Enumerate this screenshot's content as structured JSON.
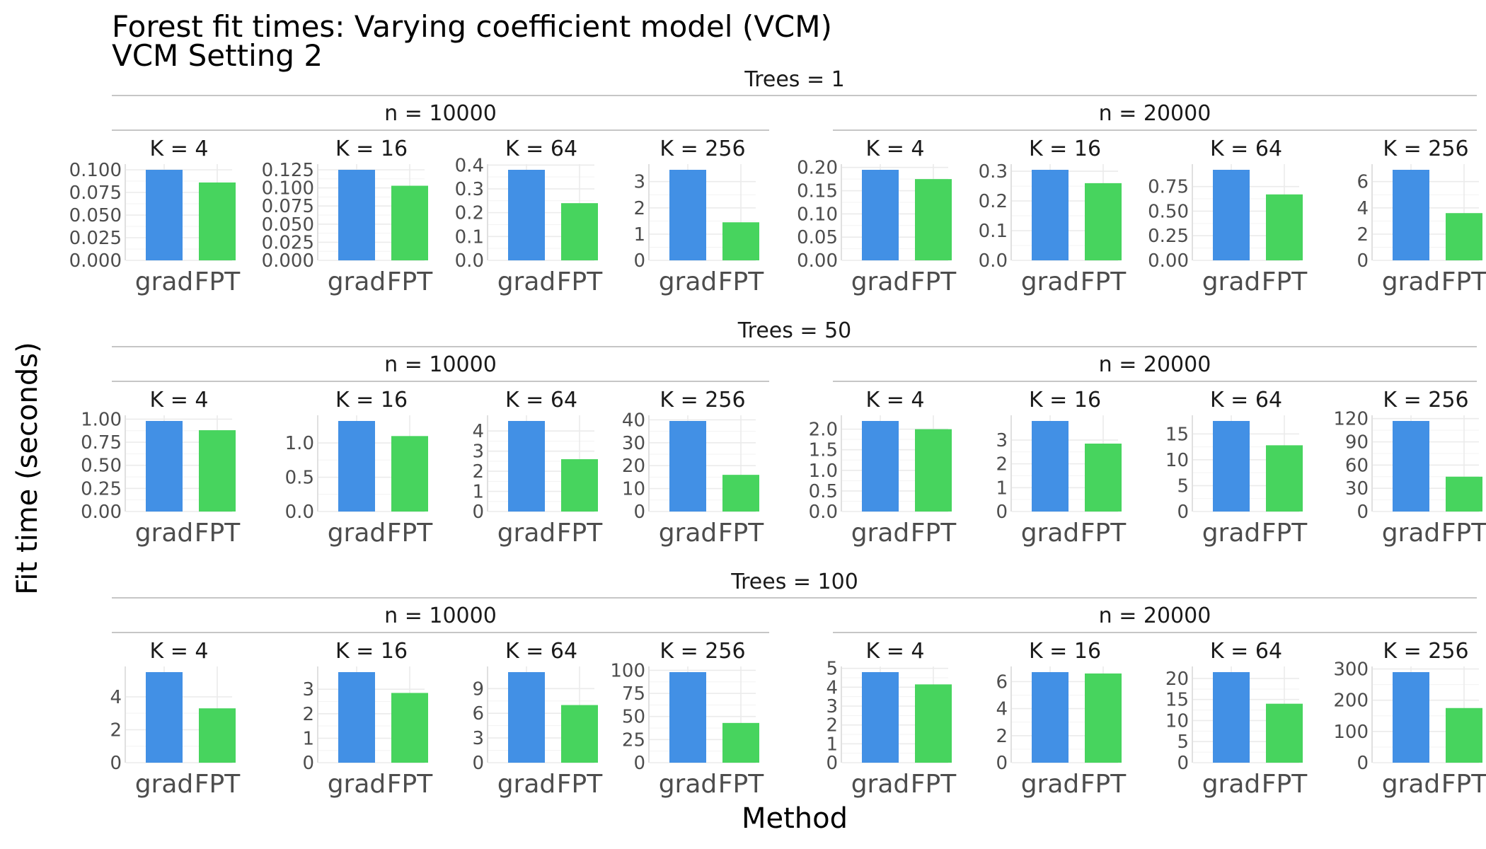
{
  "chart_data": {
    "type": "bar",
    "title": "Forest fit times: Varying coefficient model (VCM)",
    "subtitle": "VCM Setting 2",
    "xlabel": "Method",
    "ylabel": "Fit time (seconds)",
    "categories": [
      "grad",
      "FPT"
    ],
    "colors": {
      "grad": "#4290E5",
      "FPT": "#47D45E"
    },
    "rows": [
      {
        "label": "Trees = 1",
        "groups": [
          {
            "label": "n = 10000",
            "panels": [
              {
                "label": "K = 4",
                "values": [
                  0.1,
                  0.086
                ],
                "ylim": [
                  0,
                  0.1
                ],
                "ticks": [
                  "0.000",
                  "0.025",
                  "0.050",
                  "0.075",
                  "0.100"
                ],
                "tick_values": [
                  0,
                  0.025,
                  0.05,
                  0.075,
                  0.1
                ]
              },
              {
                "label": "K = 16",
                "values": [
                  0.125,
                  0.103
                ],
                "ylim": [
                  0,
                  0.125
                ],
                "ticks": [
                  "0.000",
                  "0.025",
                  "0.050",
                  "0.075",
                  "0.100",
                  "0.125"
                ],
                "tick_values": [
                  0,
                  0.025,
                  0.05,
                  0.075,
                  0.1,
                  0.125
                ]
              },
              {
                "label": "K = 64",
                "values": [
                  0.38,
                  0.24
                ],
                "ylim": [
                  0,
                  0.38
                ],
                "ticks": [
                  "0.0",
                  "0.1",
                  "0.2",
                  "0.3",
                  "0.4"
                ],
                "tick_values": [
                  0,
                  0.1,
                  0.2,
                  0.3,
                  0.4
                ]
              },
              {
                "label": "K = 256",
                "values": [
                  3.45,
                  1.45
                ],
                "ylim": [
                  0,
                  3.45
                ],
                "ticks": [
                  "0",
                  "1",
                  "2",
                  "3"
                ],
                "tick_values": [
                  0,
                  1,
                  2,
                  3
                ]
              }
            ]
          },
          {
            "label": "n = 20000",
            "panels": [
              {
                "label": "K = 4",
                "values": [
                  0.195,
                  0.175
                ],
                "ylim": [
                  0,
                  0.195
                ],
                "ticks": [
                  "0.00",
                  "0.05",
                  "0.10",
                  "0.15",
                  "0.20"
                ],
                "tick_values": [
                  0,
                  0.05,
                  0.1,
                  0.15,
                  0.2
                ]
              },
              {
                "label": "K = 16",
                "values": [
                  0.305,
                  0.26
                ],
                "ylim": [
                  0,
                  0.305
                ],
                "ticks": [
                  "0.0",
                  "0.1",
                  "0.2",
                  "0.3"
                ],
                "tick_values": [
                  0,
                  0.1,
                  0.2,
                  0.3
                ]
              },
              {
                "label": "K = 64",
                "values": [
                  0.92,
                  0.67
                ],
                "ylim": [
                  0,
                  0.92
                ],
                "ticks": [
                  "0.00",
                  "0.25",
                  "0.50",
                  "0.75"
                ],
                "tick_values": [
                  0,
                  0.25,
                  0.5,
                  0.75
                ]
              },
              {
                "label": "K = 256",
                "values": [
                  6.9,
                  3.6
                ],
                "ylim": [
                  0,
                  6.9
                ],
                "ticks": [
                  "0",
                  "2",
                  "4",
                  "6"
                ],
                "tick_values": [
                  0,
                  2,
                  4,
                  6
                ]
              }
            ]
          }
        ]
      },
      {
        "label": "Trees = 50",
        "groups": [
          {
            "label": "n = 10000",
            "panels": [
              {
                "label": "K = 4",
                "values": [
                  0.98,
                  0.88
                ],
                "ylim": [
                  0,
                  0.98
                ],
                "ticks": [
                  "0.00",
                  "0.25",
                  "0.50",
                  "0.75",
                  "1.00"
                ],
                "tick_values": [
                  0,
                  0.25,
                  0.5,
                  0.75,
                  1.0
                ]
              },
              {
                "label": "K = 16",
                "values": [
                  1.32,
                  1.1
                ],
                "ylim": [
                  0,
                  1.32
                ],
                "ticks": [
                  "0.0",
                  "0.5",
                  "1.0"
                ],
                "tick_values": [
                  0,
                  0.5,
                  1.0
                ]
              },
              {
                "label": "K = 64",
                "values": [
                  4.5,
                  2.6
                ],
                "ylim": [
                  0,
                  4.5
                ],
                "ticks": [
                  "0",
                  "1",
                  "2",
                  "3",
                  "4"
                ],
                "tick_values": [
                  0,
                  1,
                  2,
                  3,
                  4
                ]
              },
              {
                "label": "K = 256",
                "values": [
                  39.5,
                  16.0
                ],
                "ylim": [
                  0,
                  39.5
                ],
                "ticks": [
                  "0",
                  "10",
                  "20",
                  "30",
                  "40"
                ],
                "tick_values": [
                  0,
                  10,
                  20,
                  30,
                  40
                ]
              }
            ]
          },
          {
            "label": "n = 20000",
            "panels": [
              {
                "label": "K = 4",
                "values": [
                  2.2,
                  2.0
                ],
                "ylim": [
                  0,
                  2.2
                ],
                "ticks": [
                  "0.0",
                  "0.5",
                  "1.0",
                  "1.5",
                  "2.0"
                ],
                "tick_values": [
                  0,
                  0.5,
                  1.0,
                  1.5,
                  2.0
                ]
              },
              {
                "label": "K = 16",
                "values": [
                  3.8,
                  2.85
                ],
                "ylim": [
                  0,
                  3.8
                ],
                "ticks": [
                  "0",
                  "1",
                  "2",
                  "3"
                ],
                "tick_values": [
                  0,
                  1,
                  2,
                  3
                ]
              },
              {
                "label": "K = 64",
                "values": [
                  17.5,
                  12.8
                ],
                "ylim": [
                  0,
                  17.5
                ],
                "ticks": [
                  "0",
                  "5",
                  "10",
                  "15"
                ],
                "tick_values": [
                  0,
                  5,
                  10,
                  15
                ]
              },
              {
                "label": "K = 256",
                "values": [
                  117,
                  45
                ],
                "ylim": [
                  0,
                  117
                ],
                "ticks": [
                  "0",
                  "30",
                  "60",
                  "90",
                  "120"
                ],
                "tick_values": [
                  0,
                  30,
                  60,
                  90,
                  120
                ]
              }
            ]
          }
        ]
      },
      {
        "label": "Trees = 100",
        "groups": [
          {
            "label": "n = 10000",
            "panels": [
              {
                "label": "K = 4",
                "values": [
                  5.5,
                  3.3
                ],
                "ylim": [
                  0,
                  5.5
                ],
                "ticks": [
                  "0",
                  "2",
                  "4"
                ],
                "tick_values": [
                  0,
                  2,
                  4
                ]
              },
              {
                "label": "K = 16",
                "values": [
                  3.7,
                  2.85
                ],
                "ylim": [
                  0,
                  3.7
                ],
                "ticks": [
                  "0",
                  "1",
                  "2",
                  "3"
                ],
                "tick_values": [
                  0,
                  1,
                  2,
                  3
                ]
              },
              {
                "label": "K = 64",
                "values": [
                  11.0,
                  7.0
                ],
                "ylim": [
                  0,
                  11.0
                ],
                "ticks": [
                  "0",
                  "3",
                  "6",
                  "9"
                ],
                "tick_values": [
                  0,
                  3,
                  6,
                  9
                ]
              },
              {
                "label": "K = 256",
                "values": [
                  98,
                  43
                ],
                "ylim": [
                  0,
                  98
                ],
                "ticks": [
                  "0",
                  "25",
                  "50",
                  "75",
                  "100"
                ],
                "tick_values": [
                  0,
                  25,
                  50,
                  75,
                  100
                ]
              }
            ]
          },
          {
            "label": "n = 20000",
            "panels": [
              {
                "label": "K = 4",
                "values": [
                  4.8,
                  4.15
                ],
                "ylim": [
                  0,
                  4.8
                ],
                "ticks": [
                  "0",
                  "1",
                  "2",
                  "3",
                  "4",
                  "5"
                ],
                "tick_values": [
                  0,
                  1,
                  2,
                  3,
                  4,
                  5
                ]
              },
              {
                "label": "K = 16",
                "values": [
                  6.7,
                  6.6
                ],
                "ylim": [
                  0,
                  6.7
                ],
                "ticks": [
                  "0",
                  "2",
                  "4",
                  "6"
                ],
                "tick_values": [
                  0,
                  2,
                  4,
                  6
                ]
              },
              {
                "label": "K = 64",
                "values": [
                  21.5,
                  14.0
                ],
                "ylim": [
                  0,
                  21.5
                ],
                "ticks": [
                  "0",
                  "5",
                  "10",
                  "15",
                  "20"
                ],
                "tick_values": [
                  0,
                  5,
                  10,
                  15,
                  20
                ]
              },
              {
                "label": "K = 256",
                "values": [
                  290,
                  175
                ],
                "ylim": [
                  0,
                  290
                ],
                "ticks": [
                  "0",
                  "100",
                  "200",
                  "300"
                ],
                "tick_values": [
                  0,
                  100,
                  200,
                  300
                ]
              }
            ]
          }
        ]
      }
    ]
  }
}
